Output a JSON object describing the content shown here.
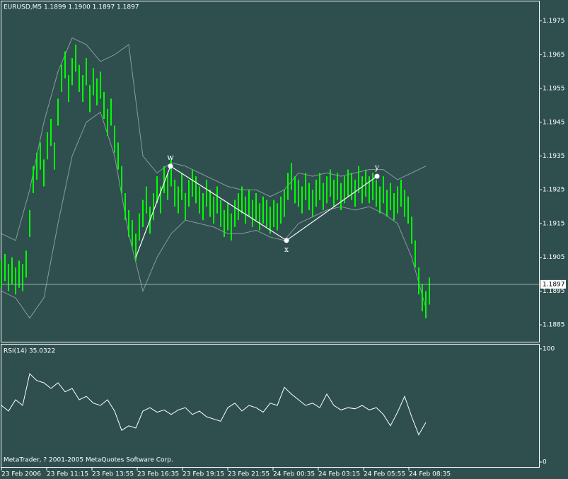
{
  "chart_data": [
    {
      "type": "ohlc",
      "title": "EURUSD,M5  1.1899 1.1900 1.1897 1.1897",
      "color": "#00ff00",
      "band_color": "#8a9a9a",
      "line_color": "#ffffff",
      "xlim": [
        0,
        152
      ],
      "ylim": [
        1.188,
        1.1981
      ],
      "yticks": [
        1.1885,
        1.1895,
        1.1905,
        1.1915,
        1.1925,
        1.1935,
        1.1945,
        1.1955,
        1.1965,
        1.1975
      ],
      "last_price": 1.1897,
      "high": [
        1.1904,
        1.1906,
        1.1903,
        1.1905,
        1.1902,
        1.1904,
        1.1903,
        1.1907,
        1.1919,
        1.1932,
        1.1936,
        1.1939,
        1.1934,
        1.1942,
        1.1946,
        1.1939,
        1.1952,
        1.1962,
        1.1966,
        1.1959,
        1.1964,
        1.1968,
        1.1962,
        1.1959,
        1.1964,
        1.1956,
        1.1961,
        1.1958,
        1.196,
        1.1954,
        1.1949,
        1.1952,
        1.1944,
        1.1939,
        1.1932,
        1.1924,
        1.1919,
        1.1916,
        1.1912,
        1.1918,
        1.1922,
        1.1926,
        1.192,
        1.1924,
        1.1929,
        1.1926,
        1.1932,
        1.193,
        1.1934,
        1.1928,
        1.1926,
        1.193,
        1.1924,
        1.1928,
        1.1931,
        1.1929,
        1.1926,
        1.1924,
        1.1928,
        1.1925,
        1.1923,
        1.1926,
        1.1922,
        1.1919,
        1.1921,
        1.1918,
        1.1922,
        1.1924,
        1.1926,
        1.1923,
        1.1925,
        1.1922,
        1.1924,
        1.1921,
        1.1923,
        1.1922,
        1.192,
        1.1922,
        1.1921,
        1.1923,
        1.1925,
        1.193,
        1.1933,
        1.1929,
        1.1928,
        1.1926,
        1.193,
        1.1927,
        1.1925,
        1.1928,
        1.193,
        1.1927,
        1.1929,
        1.1931,
        1.1928,
        1.193,
        1.1927,
        1.1929,
        1.1931,
        1.193,
        1.1928,
        1.1932,
        1.1929,
        1.1931,
        1.1929,
        1.193,
        1.1928,
        1.1926,
        1.1929,
        1.1925,
        1.1927,
        1.1924,
        1.1926,
        1.1928,
        1.1925,
        1.1923,
        1.1917,
        1.191,
        1.1902,
        1.1897,
        1.1895,
        1.1899
      ],
      "low": [
        1.1896,
        1.1898,
        1.1895,
        1.1897,
        1.1894,
        1.1896,
        1.1895,
        1.1899,
        1.1911,
        1.1924,
        1.1928,
        1.1931,
        1.1926,
        1.1934,
        1.1938,
        1.1931,
        1.1944,
        1.1954,
        1.1958,
        1.1951,
        1.1956,
        1.196,
        1.1954,
        1.1951,
        1.1956,
        1.1948,
        1.1953,
        1.195,
        1.1952,
        1.1946,
        1.1941,
        1.1944,
        1.1936,
        1.1931,
        1.1924,
        1.1916,
        1.1911,
        1.1908,
        1.1904,
        1.191,
        1.1914,
        1.1918,
        1.1912,
        1.1916,
        1.1921,
        1.1918,
        1.1924,
        1.1922,
        1.1926,
        1.192,
        1.1918,
        1.1922,
        1.1916,
        1.192,
        1.1923,
        1.1921,
        1.1918,
        1.1916,
        1.192,
        1.1917,
        1.1915,
        1.1918,
        1.1914,
        1.1911,
        1.1913,
        1.191,
        1.1914,
        1.1916,
        1.1918,
        1.1915,
        1.1917,
        1.1914,
        1.1916,
        1.1913,
        1.1915,
        1.1914,
        1.1912,
        1.1914,
        1.1913,
        1.1915,
        1.1917,
        1.1922,
        1.1925,
        1.1921,
        1.192,
        1.1918,
        1.1922,
        1.1919,
        1.1917,
        1.192,
        1.1922,
        1.1919,
        1.1921,
        1.1923,
        1.192,
        1.1922,
        1.1919,
        1.1921,
        1.1923,
        1.1922,
        1.192,
        1.1924,
        1.1921,
        1.1923,
        1.1921,
        1.1922,
        1.192,
        1.1918,
        1.1921,
        1.1917,
        1.1919,
        1.1916,
        1.1918,
        1.192,
        1.1917,
        1.1915,
        1.1909,
        1.1902,
        1.1894,
        1.1889,
        1.1887,
        1.1891
      ],
      "bands": {
        "upper": [
          1.1912,
          1.191,
          1.1925,
          1.1945,
          1.196,
          1.197,
          1.1968,
          1.1963,
          1.1965,
          1.1968,
          1.1935,
          1.193,
          1.1933,
          1.1932,
          1.193,
          1.1928,
          1.1926,
          1.1925,
          1.1925,
          1.1923,
          1.1925,
          1.193,
          1.1929,
          1.193,
          1.1929,
          1.193,
          1.1931,
          1.1931,
          1.1928,
          1.193,
          1.1932
        ],
        "lower": [
          1.1895,
          1.1893,
          1.1887,
          1.1893,
          1.1915,
          1.1935,
          1.1945,
          1.1948,
          1.1935,
          1.1912,
          1.1895,
          1.1905,
          1.1912,
          1.1916,
          1.1915,
          1.1914,
          1.1912,
          1.1912,
          1.1913,
          1.1911,
          1.191,
          1.1915,
          1.1917,
          1.1919,
          1.192,
          1.1919,
          1.192,
          1.1918,
          1.1915,
          1.1905,
          1.189
        ]
      },
      "zigzag": {
        "x": [
          38,
          47.8,
          80.6,
          106.2
        ],
        "y": [
          1.1905,
          1.1932,
          1.191,
          1.1929
        ],
        "labels": [
          null,
          "w",
          "x",
          "y"
        ]
      }
    },
    {
      "type": "line",
      "title": "RSI(14) 35.0322",
      "color": "#ffffff",
      "xlim": [
        0,
        152
      ],
      "ylim": [
        0,
        100
      ],
      "yticks": [
        0,
        100
      ],
      "footer": "MetaTrader, ? 2001-2005 MetaQuotes Software Corp.",
      "xticks": [
        {
          "value": 0,
          "label": "23 Feb 2006"
        },
        {
          "value": 12.8,
          "label": "23 Feb 11:15"
        },
        {
          "value": 25.6,
          "label": "23 Feb 13:55"
        },
        {
          "value": 38.4,
          "label": "23 Feb 16:35"
        },
        {
          "value": 51.2,
          "label": "23 Feb 19:15"
        },
        {
          "value": 64,
          "label": "23 Feb 21:55"
        },
        {
          "value": 76.8,
          "label": "24 Feb 00:35"
        },
        {
          "value": 89.6,
          "label": "24 Feb 03:15"
        },
        {
          "value": 102.4,
          "label": "24 Feb 05:55"
        },
        {
          "value": 115.2,
          "label": "24 Feb 08:35"
        }
      ],
      "values": [
        50,
        45,
        55,
        50,
        78,
        72,
        70,
        65,
        70,
        62,
        65,
        55,
        58,
        52,
        50,
        55,
        45,
        28,
        32,
        30,
        45,
        48,
        44,
        46,
        42,
        46,
        48,
        42,
        45,
        40,
        38,
        36,
        48,
        52,
        45,
        50,
        48,
        44,
        52,
        50,
        66,
        60,
        55,
        50,
        52,
        48,
        60,
        50,
        46,
        48,
        47,
        50,
        46,
        48,
        42,
        32,
        44,
        58,
        40,
        24,
        35
      ]
    }
  ]
}
